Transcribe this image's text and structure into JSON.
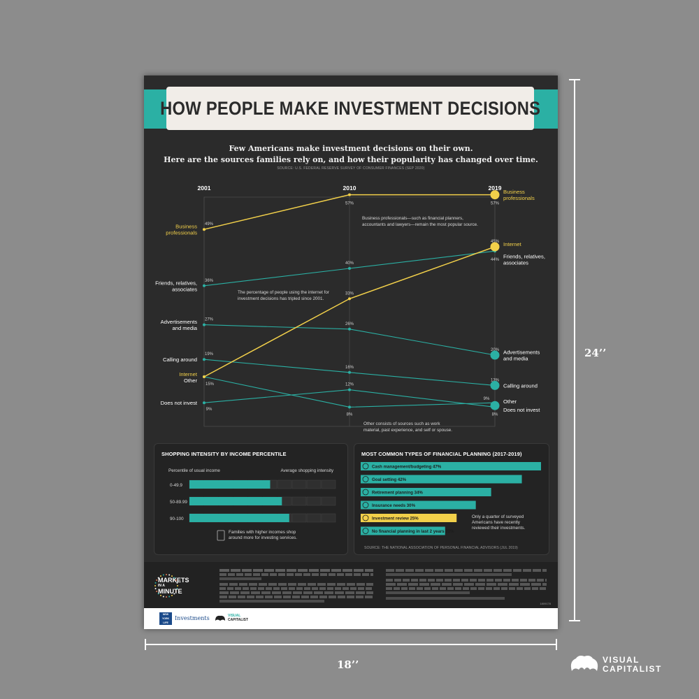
{
  "poster": {
    "title": "HOW PEOPLE MAKE INVESTMENT DECISIONS",
    "subtitle_line1": "Few Americans make investment decisions on their own.",
    "subtitle_line2": "Here are the sources families rely on, and how their popularity has changed over time.",
    "source": "SOURCE: U.S. FEDERAL RESERVE SURVEY OF CONSUMER FINANCES (SEP 2020)",
    "annotations": {
      "business": "Business professionals—such as financial planners, accountants and lawyers—remain the most popular source.",
      "internet": "The percentage of people using the internet for investment decisions has tripled since 2001.",
      "other": "Other consists of sources such as work material, past experience, and self or spouse."
    }
  },
  "colors": {
    "background": "#2b2b2b",
    "teal": "#2bb0a4",
    "yellow": "#f2d04a",
    "frame": "#8c8c8c"
  },
  "chart_data": [
    {
      "type": "line",
      "title": "",
      "x": [
        "2001",
        "2010",
        "2019"
      ],
      "ylim": [
        0,
        60
      ],
      "grid": true,
      "series": [
        {
          "name": "Business professionals",
          "values": [
            49,
            57,
            57
          ],
          "color": "#f2d04a",
          "left_label": "Business professionals",
          "right_label": "Business professionals"
        },
        {
          "name": "Friends, relatives, associates",
          "values": [
            36,
            40,
            44
          ],
          "color": "#2bb0a4",
          "left_label": "Friends, relatives, associates",
          "right_label": "Friends, relatives, associates"
        },
        {
          "name": "Advertisements and media",
          "values": [
            27,
            26,
            20
          ],
          "color": "#2bb0a4",
          "left_label": "Advertisements and media",
          "right_label": "Advertisements and media"
        },
        {
          "name": "Calling around",
          "values": [
            19,
            16,
            13
          ],
          "color": "#2bb0a4",
          "left_label": "Calling around",
          "right_label": "Calling around"
        },
        {
          "name": "Internet",
          "values": [
            15,
            33,
            45
          ],
          "color": "#f2d04a",
          "left_label": "Internet",
          "right_label": "Internet"
        },
        {
          "name": "Other",
          "values": [
            15,
            8,
            9
          ],
          "color": "#2bb0a4",
          "left_label": "Other",
          "right_label": "Other"
        },
        {
          "name": "Does not invest",
          "values": [
            9,
            12,
            8
          ],
          "color": "#2bb0a4",
          "left_label": "Does not invest",
          "right_label": "Does not invest"
        }
      ],
      "point_labels": [
        [
          "49%",
          "57%",
          "57%"
        ],
        [
          "36%",
          "40%",
          "44%"
        ],
        [
          "27%",
          "26%",
          "20%"
        ],
        [
          "19%",
          "16%",
          "13%"
        ],
        [
          "",
          "33%",
          "45%"
        ],
        [
          "15%",
          "8%",
          "9%"
        ],
        [
          "9%",
          "12%",
          "8%"
        ]
      ]
    },
    {
      "type": "bar",
      "title": "SHOPPING INTENSITY BY INCOME PERCENTILE",
      "xlabel": "Percentile of usual income",
      "ylabel": "Average shopping intensity",
      "categories": [
        "0-49.9",
        "50-89.99",
        "90-100"
      ],
      "values": [
        0.55,
        0.63,
        0.68
      ],
      "note": "Families with higher incomes shop around more for investing services."
    },
    {
      "type": "bar",
      "title": "MOST COMMON TYPES OF FINANCIAL PLANNING (2017-2019)",
      "categories": [
        "Cash management/budgeting",
        "Goal setting",
        "Retirement planning",
        "Insurance needs",
        "Investment review",
        "No financial planning in last 2 years"
      ],
      "values": [
        47,
        42,
        34,
        30,
        25,
        22
      ],
      "value_labels": [
        "47%",
        "42%",
        "34%",
        "30%",
        "25%",
        "22%"
      ],
      "highlight": "Investment review",
      "note": "Only a quarter of surveyed Americans have recently reviewed their investments.",
      "source": "SOURCE: THE NATIONAL ASSOCIATION OF PERSONAL FINANCIAL ADVISORS (JUL 2019)"
    }
  ],
  "footer": {
    "markets_line1": "MARKETS",
    "markets_line2": "IN A",
    "markets_line3": "MINUTE",
    "partner": "Investments",
    "partner_badge": "NEW YORK LIFE",
    "vc_line1": "VISUAL",
    "vc_line2": "CAPITALIST",
    "code": "1809178"
  },
  "dimensions": {
    "height": "24’’",
    "width": "18’’"
  },
  "brand": {
    "line1": "VISUAL",
    "line2": "CAPITALIST"
  }
}
